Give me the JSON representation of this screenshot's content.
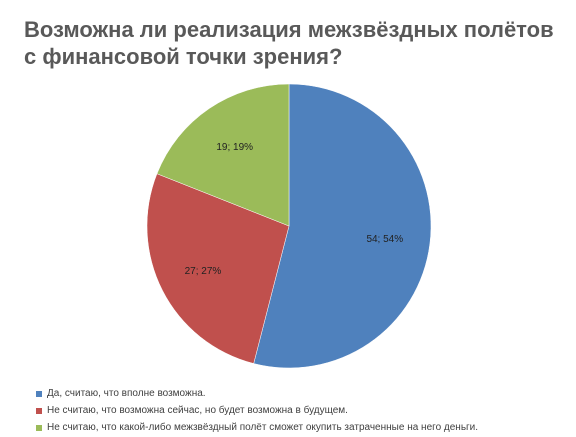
{
  "chart_data": {
    "type": "pie",
    "title": "Возможна ли реализация межзвёздных полётов с финансовой точки зрения?",
    "slices": [
      {
        "name": "Да, считаю, что вполне возможна.",
        "value": 54,
        "percent": 54,
        "label": "54; 54%",
        "color": "#4F81BD"
      },
      {
        "name": "Не считаю, что возможна сейчас, но будет возможна в будущем.",
        "value": 27,
        "percent": 27,
        "label": "27; 27%",
        "color": "#C0504D"
      },
      {
        "name": "Не считаю, что какой-либо межзвёздный полёт сможет окупить затраченные на него деньги.",
        "value": 19,
        "percent": 19,
        "label": "19; 19%",
        "color": "#9BBB59"
      }
    ],
    "legend_position": "bottom"
  }
}
